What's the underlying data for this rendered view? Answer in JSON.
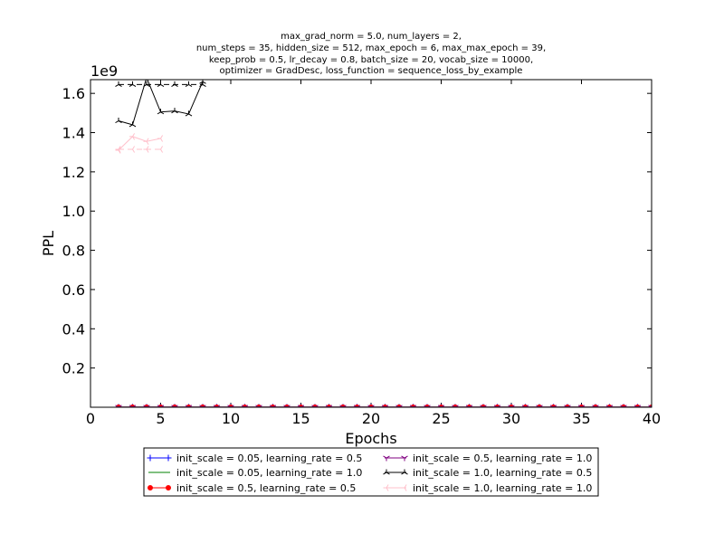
{
  "chart_data": {
    "type": "line",
    "title_lines": [
      "max_grad_norm = 5.0, num_layers = 2,",
      "num_steps = 35, hidden_size = 512, max_epoch = 6, max_max_epoch = 39,",
      "keep_prob = 0.5, lr_decay = 0.8, batch_size = 20, vocab_size = 10000,",
      "optimizer = GradDesc, loss_function = sequence_loss_by_example"
    ],
    "xlabel": "Epochs",
    "ylabel": "PPL",
    "y_scale_label": "1e9",
    "xlim": [
      0,
      40
    ],
    "ylim": [
      0,
      1.67
    ],
    "x_ticks": [
      0,
      5,
      10,
      15,
      20,
      25,
      30,
      35,
      40
    ],
    "x_tick_labels": [
      "0",
      "5",
      "10",
      "15",
      "20",
      "25",
      "30",
      "35",
      "40"
    ],
    "y_ticks": [
      0.2,
      0.4,
      0.6,
      0.8,
      1.0,
      1.2,
      1.4,
      1.6
    ],
    "y_tick_labels": [
      "0.2",
      "0.4",
      "0.6",
      "0.8",
      "1.0",
      "1.2",
      "1.4",
      "1.6"
    ],
    "legend_placement": "below plot, two columns",
    "series": [
      {
        "name": "init_scale = 0.05, learning_rate = 0.5",
        "color": "#0000ff",
        "marker": "plus",
        "role": "train",
        "x": [
          2,
          3,
          4,
          5,
          6,
          7,
          8,
          9,
          10,
          11,
          12,
          13,
          14,
          15,
          16,
          17,
          18,
          19,
          20,
          21,
          22,
          23,
          24,
          25,
          26,
          27,
          28,
          29,
          30,
          31,
          32,
          33,
          34,
          35,
          36,
          37,
          38,
          39,
          40
        ],
        "y": [
          0.0005,
          0.0005,
          0.0005,
          0.0005,
          0.0005,
          0.0005,
          0.0005,
          0.0005,
          0.0005,
          0.0005,
          0.0005,
          0.0005,
          0.0005,
          0.0005,
          0.0005,
          0.0005,
          0.0005,
          0.0005,
          0.0005,
          0.0005,
          0.0005,
          0.0005,
          0.0005,
          0.0005,
          0.0005,
          0.0005,
          0.0005,
          0.0005,
          0.0005,
          0.0005,
          0.0005,
          0.0005,
          0.0005,
          0.0005,
          0.0005,
          0.0005,
          0.0005,
          0.0005,
          0.0005
        ]
      },
      {
        "name": "init_scale = 0.05, learning_rate = 1.0",
        "color": "#008000",
        "marker": "none",
        "role": "train",
        "x": [
          2,
          3,
          4,
          5,
          6,
          7,
          8,
          9,
          10,
          11,
          12,
          13,
          14,
          15,
          16,
          17,
          18,
          19,
          20,
          21,
          22,
          23,
          24,
          25,
          26,
          27,
          28,
          29,
          30,
          31,
          32,
          33,
          34,
          35,
          36,
          37,
          38,
          39,
          40
        ],
        "y": [
          0.0005,
          0.0005,
          0.0005,
          0.0005,
          0.0005,
          0.0005,
          0.0005,
          0.0005,
          0.0005,
          0.0005,
          0.0005,
          0.0005,
          0.0005,
          0.0005,
          0.0005,
          0.0005,
          0.0005,
          0.0005,
          0.0005,
          0.0005,
          0.0005,
          0.0005,
          0.0005,
          0.0005,
          0.0005,
          0.0005,
          0.0005,
          0.0005,
          0.0005,
          0.0005,
          0.0005,
          0.0005,
          0.0005,
          0.0005,
          0.0005,
          0.0005,
          0.0005,
          0.0005,
          0.0005
        ]
      },
      {
        "name": "init_scale = 0.5, learning_rate = 0.5",
        "color": "#ff0000",
        "marker": "dot",
        "role": "train",
        "x": [
          2,
          3,
          4,
          5,
          6,
          7,
          8,
          9,
          10,
          11,
          12,
          13,
          14,
          15,
          16,
          17,
          18,
          19,
          20,
          21,
          22,
          23,
          24,
          25,
          26,
          27,
          28,
          29,
          30,
          31,
          32,
          33,
          34,
          35,
          36,
          37,
          38,
          39,
          40
        ],
        "y": [
          0.0005,
          0.0005,
          0.0005,
          0.0005,
          0.0005,
          0.0005,
          0.0005,
          0.0005,
          0.0005,
          0.0005,
          0.0005,
          0.0005,
          0.0005,
          0.0005,
          0.0005,
          0.0005,
          0.0005,
          0.0005,
          0.0005,
          0.0005,
          0.0005,
          0.0005,
          0.0005,
          0.0005,
          0.0005,
          0.0005,
          0.0005,
          0.0005,
          0.0005,
          0.0005,
          0.0005,
          0.0005,
          0.0005,
          0.0005,
          0.0005,
          0.0005,
          0.0005,
          0.0005,
          0.0005
        ]
      },
      {
        "name": "init_scale = 0.5, learning_rate = 1.0",
        "color": "#800080",
        "marker": "tri_down",
        "role": "train",
        "x": [
          2,
          3,
          4,
          5,
          6,
          7,
          8,
          9,
          10,
          11,
          12,
          13,
          14,
          15,
          16,
          17,
          18,
          19,
          20,
          21,
          22,
          23,
          24,
          25,
          26,
          27,
          28,
          29,
          30,
          31,
          32,
          33,
          34,
          35,
          36,
          37,
          38,
          39,
          40
        ],
        "y": [
          0.0005,
          0.0005,
          0.0005,
          0.0005,
          0.0005,
          0.0005,
          0.0005,
          0.0005,
          0.0005,
          0.0005,
          0.0005,
          0.0005,
          0.0005,
          0.0005,
          0.0005,
          0.0005,
          0.0005,
          0.0005,
          0.0005,
          0.0005,
          0.0005,
          0.0005,
          0.0005,
          0.0005,
          0.0005,
          0.0005,
          0.0005,
          0.0005,
          0.0005,
          0.0005,
          0.0005,
          0.0005,
          0.0005,
          0.0005,
          0.0005,
          0.0005,
          0.0005,
          0.0005,
          0.0005
        ]
      },
      {
        "name": "init_scale = 1.0, learning_rate = 0.5",
        "color": "#000000",
        "marker": "tri_up",
        "role": "train",
        "x": [
          2,
          3,
          4,
          5,
          6,
          7,
          8
        ],
        "y": [
          1.46,
          1.44,
          1.68,
          1.505,
          1.51,
          1.495,
          1.66
        ]
      },
      {
        "name": "init_scale = 1.0, learning_rate = 0.5",
        "color": "#000000",
        "marker": "tri_up",
        "role": "valid",
        "dashed": true,
        "x": [
          2,
          3,
          4,
          5,
          6,
          7,
          8
        ],
        "y": [
          1.645,
          1.645,
          1.645,
          1.645,
          1.645,
          1.645,
          1.645
        ]
      },
      {
        "name": "init_scale = 1.0, learning_rate = 1.0",
        "color": "#ffc0cb",
        "marker": "tri_left",
        "role": "train",
        "x": [
          2,
          3,
          4,
          5
        ],
        "y": [
          1.31,
          1.38,
          1.355,
          1.37
        ]
      },
      {
        "name": "init_scale = 1.0, learning_rate = 1.0",
        "color": "#ffc0cb",
        "marker": "tri_left",
        "role": "valid",
        "dashed": true,
        "x": [
          2,
          3,
          4,
          5
        ],
        "y": [
          1.315,
          1.315,
          1.315,
          1.315
        ]
      }
    ],
    "legend": [
      {
        "label": "init_scale = 0.05, learning_rate = 0.5",
        "color": "#0000ff",
        "marker": "plus"
      },
      {
        "label": "init_scale = 0.05, learning_rate = 1.0",
        "color": "#008000",
        "marker": "none"
      },
      {
        "label": "init_scale = 0.5, learning_rate = 0.5",
        "color": "#ff0000",
        "marker": "dot"
      },
      {
        "label": "init_scale = 0.5, learning_rate = 1.0",
        "color": "#800080",
        "marker": "tri_down"
      },
      {
        "label": "init_scale = 1.0, learning_rate = 0.5",
        "color": "#000000",
        "marker": "tri_up"
      },
      {
        "label": "init_scale = 1.0, learning_rate = 1.0",
        "color": "#ffc0cb",
        "marker": "tri_left"
      }
    ]
  }
}
